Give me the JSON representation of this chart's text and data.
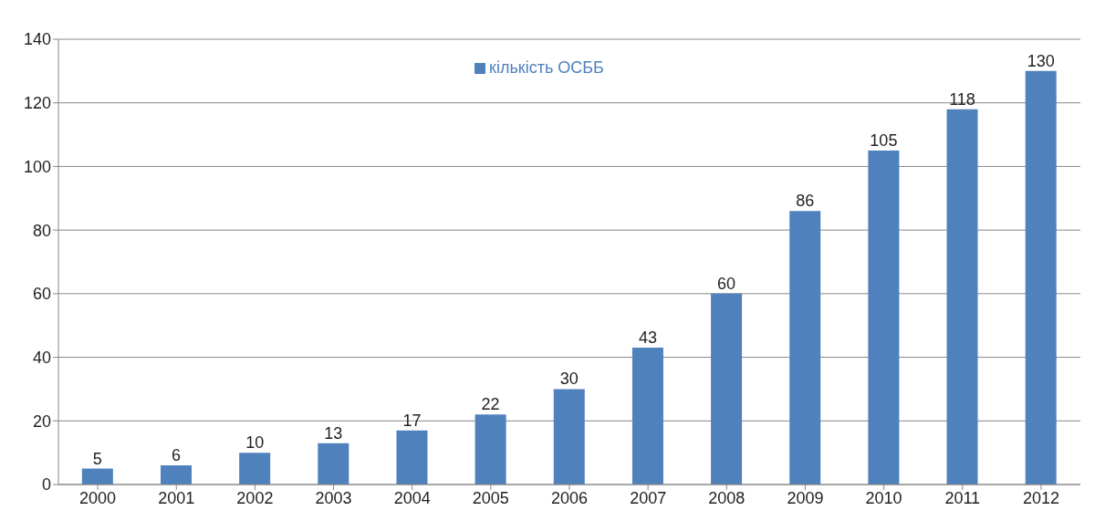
{
  "chart_data": {
    "type": "bar",
    "categories": [
      "2000",
      "2001",
      "2002",
      "2003",
      "2004",
      "2005",
      "2006",
      "2007",
      "2008",
      "2009",
      "2010",
      "2011",
      "2012"
    ],
    "series": [
      {
        "name": "кількість ОСББ",
        "color": "#4f81bd",
        "values": [
          5,
          6,
          10,
          13,
          17,
          22,
          30,
          43,
          60,
          86,
          105,
          118,
          130
        ]
      }
    ],
    "ylim": [
      0,
      140
    ],
    "yticks": [
      0,
      20,
      40,
      60,
      80,
      100,
      120,
      140
    ],
    "grid": "y",
    "legend": "top",
    "data_labels": true
  }
}
